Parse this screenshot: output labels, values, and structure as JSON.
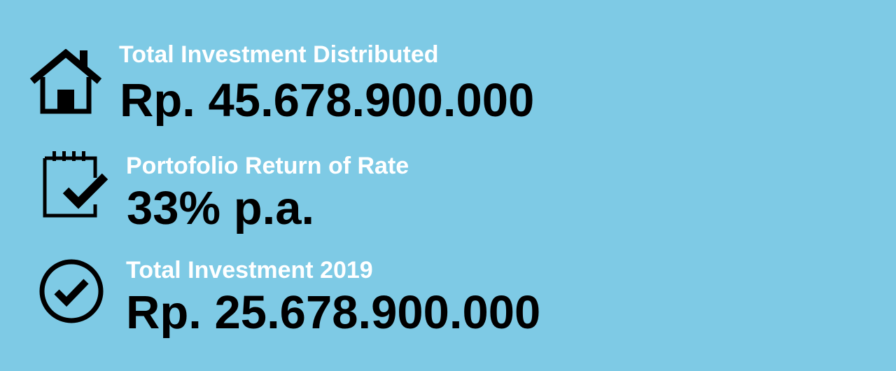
{
  "colors": {
    "background": "#7ecae5",
    "label": "#ffffff",
    "value": "#000000"
  },
  "stats": [
    {
      "icon": "house-icon",
      "label": "Total Investment Distributed",
      "value": "Rp. 45.678.900.000"
    },
    {
      "icon": "calendar-check-icon",
      "label": "Portofolio Return of Rate",
      "value": "33% p.a."
    },
    {
      "icon": "circle-check-icon",
      "label": "Total Investment 2019",
      "value": "Rp. 25.678.900.000"
    }
  ]
}
